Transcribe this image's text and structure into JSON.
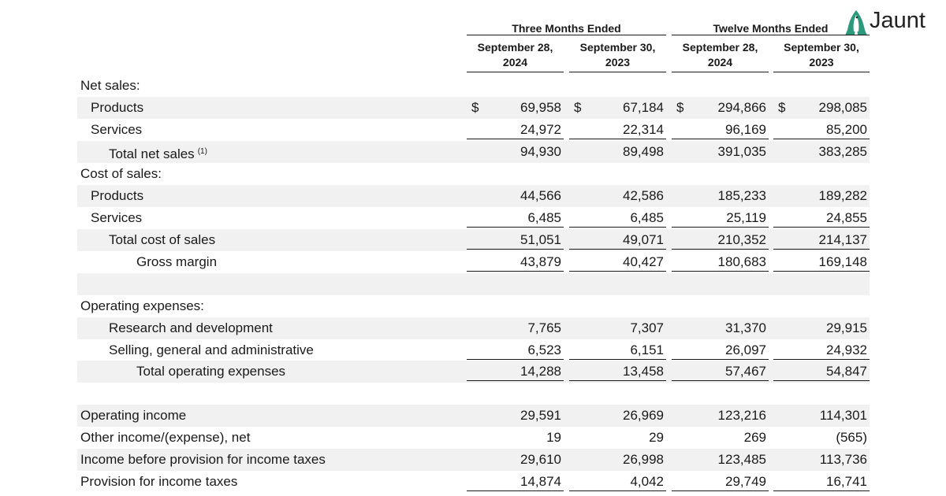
{
  "logo": {
    "text": "Jaunt"
  },
  "header": {
    "groups": [
      "Three Months Ended",
      "Twelve Months Ended"
    ],
    "columns": [
      [
        "September 28,",
        "2024"
      ],
      [
        "September 30,",
        "2023"
      ],
      [
        "September 28,",
        "2024"
      ],
      [
        "September 30,",
        "2023"
      ]
    ]
  },
  "rows": [
    {
      "label": "Net sales:"
    },
    {
      "label": "Products",
      "currency": "$",
      "values": [
        "69,958",
        "67,184",
        "294,866",
        "298,085"
      ]
    },
    {
      "label": "Services",
      "values": [
        "24,972",
        "22,314",
        "96,169",
        "85,200"
      ]
    },
    {
      "label": "Total net sales",
      "footnote": "(1)",
      "values": [
        "94,930",
        "89,498",
        "391,035",
        "383,285"
      ]
    },
    {
      "label": "Cost of sales:"
    },
    {
      "label": "Products",
      "values": [
        "44,566",
        "42,586",
        "185,233",
        "189,282"
      ]
    },
    {
      "label": "Services",
      "values": [
        "6,485",
        "6,485",
        "25,119",
        "24,855"
      ]
    },
    {
      "label": "Total cost of sales",
      "values": [
        "51,051",
        "49,071",
        "210,352",
        "214,137"
      ]
    },
    {
      "label": "Gross margin",
      "values": [
        "43,879",
        "40,427",
        "180,683",
        "169,148"
      ]
    },
    {
      "label": "Operating expenses:"
    },
    {
      "label": "Research and development",
      "values": [
        "7,765",
        "7,307",
        "31,370",
        "29,915"
      ]
    },
    {
      "label": "Selling, general and administrative",
      "values": [
        "6,523",
        "6,151",
        "26,097",
        "24,932"
      ]
    },
    {
      "label": "Total operating expenses",
      "values": [
        "14,288",
        "13,458",
        "57,467",
        "54,847"
      ]
    },
    {
      "label": "Operating income",
      "values": [
        "29,591",
        "26,969",
        "123,216",
        "114,301"
      ]
    },
    {
      "label": "Other income/(expense), net",
      "values": [
        "19",
        "29",
        "269",
        "(565)"
      ]
    },
    {
      "label": "Income before provision for income taxes",
      "values": [
        "29,610",
        "26,998",
        "123,485",
        "113,736"
      ]
    },
    {
      "label": "Provision for income taxes",
      "values": [
        "14,874",
        "4,042",
        "29,749",
        "16,741"
      ]
    }
  ]
}
